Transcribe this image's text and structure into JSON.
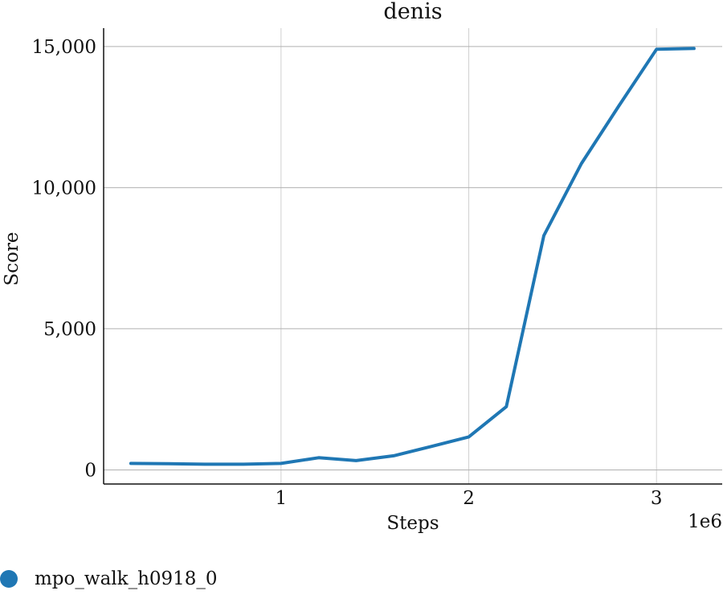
{
  "chart_data": {
    "type": "line",
    "title": "denis",
    "xlabel": "Steps",
    "ylabel": "Score",
    "x_scale_label": "1e6",
    "xlim": [
      0.055,
      3.35
    ],
    "ylim": [
      -500,
      15650
    ],
    "x_ticks": [
      1,
      2,
      3
    ],
    "x_tick_labels": [
      "1",
      "2",
      "3"
    ],
    "y_ticks": [
      0,
      5000,
      10000,
      15000
    ],
    "y_tick_labels": [
      "0",
      "5,000",
      "10,000",
      "15,000"
    ],
    "grid": true,
    "legend_position": "bottom-left",
    "series": [
      {
        "name": "mpo_walk_h0918_0",
        "color": "#1f77b4",
        "x": [
          0.2,
          0.4,
          0.6,
          0.8,
          1.0,
          1.2,
          1.4,
          1.6,
          1.8,
          2.0,
          2.2,
          2.4,
          2.6,
          2.8,
          3.0,
          3.2
        ],
        "y": [
          230,
          220,
          200,
          200,
          230,
          430,
          330,
          500,
          830,
          1170,
          2240,
          8300,
          10850,
          12900,
          14900,
          14930
        ]
      }
    ]
  }
}
